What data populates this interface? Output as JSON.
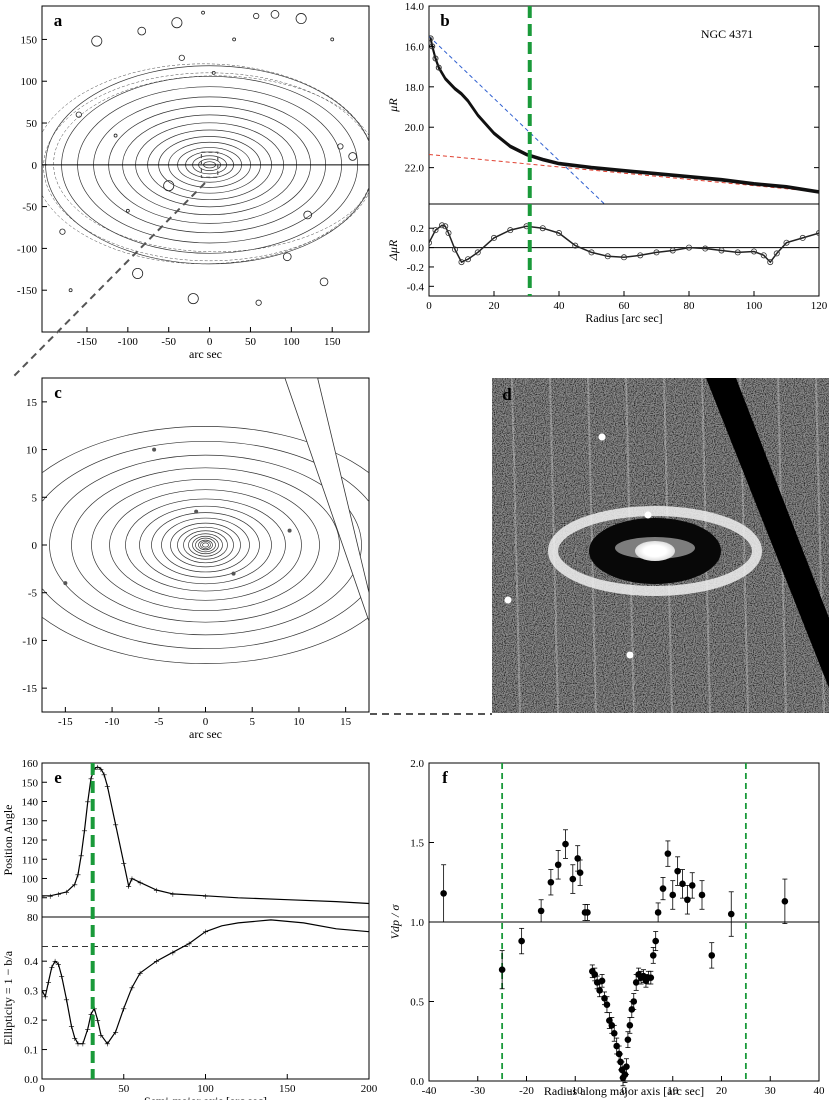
{
  "chart_data": [
    {
      "panel": "a",
      "type": "contour",
      "xlabel": "arc sec",
      "xticks": [
        -150,
        -100,
        -50,
        0,
        50,
        100,
        150
      ],
      "yticks": [
        150,
        100,
        50,
        0,
        -50,
        -100,
        -150
      ],
      "xlim": [
        -205,
        195
      ],
      "ylim": [
        -200,
        190
      ]
    },
    {
      "panel": "b",
      "type": "line",
      "annotation": "NGC 4371",
      "ylabel": "μR",
      "yticks": [
        14.0,
        16.0,
        18.0,
        20.0,
        22.0
      ],
      "ylim": [
        14.0,
        23.8
      ],
      "xlim": [
        0,
        120
      ],
      "series": [
        {
          "x": [
            0.5,
            1,
            2,
            3,
            5,
            8,
            10,
            12,
            15,
            20,
            25,
            30,
            35,
            40,
            50,
            60,
            70,
            80,
            90,
            100,
            110,
            120
          ],
          "values": [
            15.6,
            16.0,
            16.6,
            17.05,
            17.6,
            18.1,
            18.35,
            18.7,
            19.4,
            20.3,
            20.95,
            21.35,
            21.6,
            21.8,
            22.0,
            22.15,
            22.3,
            22.45,
            22.6,
            22.8,
            22.95,
            23.2
          ]
        }
      ],
      "fits": [
        {
          "color": "#3060d0",
          "x": [
            0,
            54
          ],
          "values": [
            15.5,
            23.8
          ]
        },
        {
          "color": "#e04030",
          "x": [
            0,
            120
          ],
          "values": [
            21.35,
            23.2
          ]
        }
      ]
    },
    {
      "panel": "b-residual",
      "type": "line",
      "xlabel": "Radius [arc sec]",
      "ylabel": "ΔμR",
      "xticks": [
        0,
        20,
        40,
        60,
        80,
        100,
        120
      ],
      "yticks": [
        0.2,
        0.0,
        -0.2,
        -0.4
      ],
      "ylim": [
        -0.5,
        0.45
      ],
      "xlim": [
        0,
        120
      ],
      "series": [
        {
          "x": [
            0,
            2,
            4,
            5,
            6,
            8,
            10,
            12,
            15,
            20,
            25,
            30,
            35,
            40,
            45,
            50,
            55,
            60,
            65,
            70,
            75,
            80,
            85,
            90,
            95,
            100,
            103,
            105,
            107,
            110,
            115,
            120
          ],
          "values": [
            0.05,
            0.18,
            0.23,
            0.22,
            0.15,
            -0.02,
            -0.15,
            -0.12,
            -0.05,
            0.1,
            0.18,
            0.22,
            0.2,
            0.15,
            0.02,
            -0.05,
            -0.09,
            -0.1,
            -0.08,
            -0.05,
            -0.03,
            0.0,
            -0.01,
            -0.03,
            -0.05,
            -0.04,
            -0.08,
            -0.15,
            -0.06,
            0.05,
            0.1,
            0.15
          ]
        }
      ],
      "vline": 31
    },
    {
      "panel": "c",
      "type": "contour",
      "xlabel": "arc sec",
      "xticks": [
        -15,
        -10,
        -5,
        0,
        5,
        10,
        15
      ],
      "yticks": [
        15,
        10,
        5,
        0,
        -5,
        -10,
        -15
      ],
      "xlim": [
        -17.5,
        17.5
      ],
      "ylim": [
        -17.5,
        17.5
      ]
    },
    {
      "panel": "d",
      "type": "image"
    },
    {
      "panel": "e",
      "type": "line",
      "ylabel": "Position Angle",
      "yticks": [
        80,
        90,
        100,
        110,
        120,
        130,
        140,
        150,
        160
      ],
      "ylim": [
        80,
        160
      ],
      "xlim": [
        0,
        200
      ],
      "series": [
        {
          "x": [
            0,
            5,
            10,
            15,
            20,
            22,
            24,
            26,
            28,
            30,
            32,
            34,
            36,
            38,
            40,
            45,
            50,
            53,
            55,
            60,
            70,
            80,
            100,
            120,
            150,
            180,
            200
          ],
          "values": [
            91,
            91,
            92,
            93,
            97,
            102,
            112,
            125,
            140,
            152,
            157,
            158,
            157,
            154,
            148,
            128,
            108,
            96,
            100,
            98,
            94,
            92,
            91,
            90,
            89,
            88,
            87
          ]
        }
      ],
      "vline": 31
    },
    {
      "panel": "e-ellipticity",
      "type": "line",
      "xlabel": "Semi-major axis [arc sec]",
      "ylabel": "Ellipticity = 1 − b/a",
      "xticks": [
        0,
        50,
        100,
        150,
        200
      ],
      "yticks": [
        0.0,
        0.1,
        0.2,
        0.3,
        0.4
      ],
      "ylim": [
        0,
        0.55
      ],
      "xlim": [
        0,
        200
      ],
      "series": [
        {
          "x": [
            0,
            2,
            4,
            6,
            8,
            10,
            12,
            15,
            18,
            20,
            22,
            25,
            28,
            30,
            32,
            34,
            36,
            40,
            45,
            50,
            55,
            60,
            70,
            80,
            90,
            100,
            110,
            120,
            140,
            160,
            180,
            200
          ],
          "values": [
            0.3,
            0.28,
            0.33,
            0.38,
            0.4,
            0.39,
            0.35,
            0.27,
            0.18,
            0.14,
            0.12,
            0.12,
            0.17,
            0.22,
            0.24,
            0.2,
            0.15,
            0.12,
            0.16,
            0.24,
            0.31,
            0.36,
            0.4,
            0.43,
            0.46,
            0.5,
            0.52,
            0.53,
            0.54,
            0.53,
            0.51,
            0.5
          ]
        }
      ],
      "hline": 0.45,
      "vline": 31
    },
    {
      "panel": "f",
      "type": "scatter",
      "xlabel": "Radius along major axis [arc sec]",
      "ylabel": "Vdp / σ",
      "xticks": [
        -40,
        -30,
        -20,
        -10,
        0,
        10,
        20,
        30,
        40
      ],
      "yticks": [
        0.0,
        0.5,
        1.0,
        1.5,
        2.0
      ],
      "xlim": [
        -40,
        40
      ],
      "ylim": [
        0,
        2.0
      ],
      "hline": 1.0,
      "vlines": [
        -25,
        25
      ],
      "x": [
        -37,
        -25,
        -21,
        -17,
        -15,
        -13.5,
        -12,
        -10.5,
        -9.5,
        -9,
        -8,
        -7.5,
        -6.5,
        -6,
        -5.5,
        -5,
        -4.5,
        -4,
        -3.5,
        -3,
        -2.5,
        -2,
        -1.5,
        -1,
        -0.7,
        -0.4,
        -0.2,
        0.2,
        0.5,
        0.8,
        1.2,
        1.6,
        2,
        2.5,
        3,
        3.5,
        4,
        4.5,
        5,
        5.5,
        6,
        6.5,
        7,
        8,
        9,
        10,
        11,
        12,
        13,
        14,
        16,
        18,
        22,
        33
      ],
      "values": [
        1.18,
        0.7,
        0.88,
        1.07,
        1.25,
        1.36,
        1.49,
        1.27,
        1.4,
        1.31,
        1.06,
        1.06,
        0.69,
        0.67,
        0.62,
        0.57,
        0.63,
        0.52,
        0.48,
        0.38,
        0.35,
        0.3,
        0.22,
        0.17,
        0.12,
        0.07,
        0.02,
        0.04,
        0.09,
        0.26,
        0.35,
        0.45,
        0.5,
        0.62,
        0.67,
        0.65,
        0.66,
        0.63,
        0.65,
        0.65,
        0.79,
        0.88,
        1.06,
        1.21,
        1.43,
        1.17,
        1.32,
        1.24,
        1.14,
        1.23,
        1.17,
        0.79,
        1.05,
        1.13
      ],
      "errors": [
        0.18,
        0.12,
        0.08,
        0.07,
        0.08,
        0.09,
        0.09,
        0.09,
        0.08,
        0.08,
        0.05,
        0.05,
        0.04,
        0.04,
        0.04,
        0.04,
        0.04,
        0.04,
        0.05,
        0.05,
        0.05,
        0.05,
        0.05,
        0.05,
        0.05,
        0.05,
        0.05,
        0.05,
        0.05,
        0.05,
        0.05,
        0.05,
        0.05,
        0.05,
        0.04,
        0.04,
        0.04,
        0.04,
        0.04,
        0.04,
        0.05,
        0.06,
        0.06,
        0.07,
        0.08,
        0.09,
        0.09,
        0.09,
        0.09,
        0.08,
        0.09,
        0.08,
        0.14,
        0.14
      ]
    }
  ]
}
